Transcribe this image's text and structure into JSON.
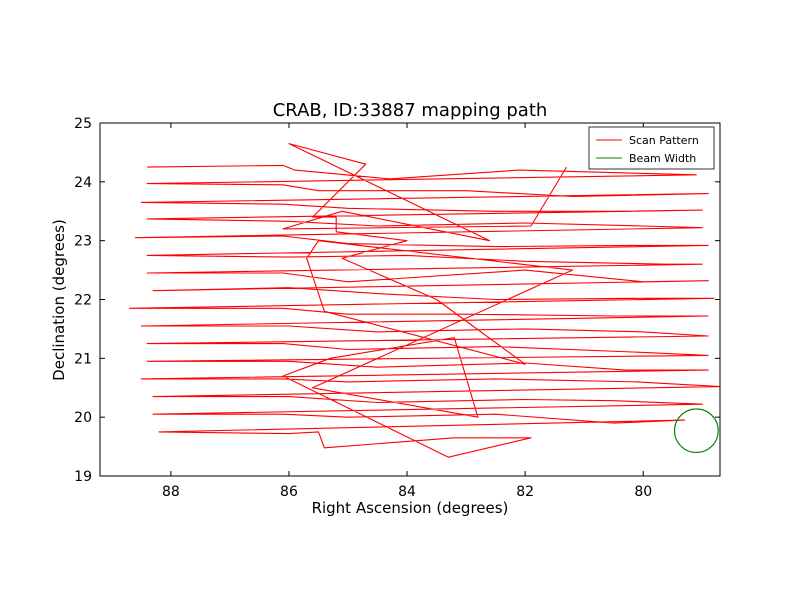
{
  "chart_data": {
    "type": "line",
    "title": "CRAB, ID:33887 mapping path",
    "xlabel": "Right Ascension (degrees)",
    "ylabel": "Declination (degrees)",
    "xlim": [
      89.2,
      78.7
    ],
    "ylim": [
      19,
      25
    ],
    "x_ticks": [
      88,
      86,
      84,
      82,
      80
    ],
    "y_ticks": [
      19,
      20,
      21,
      22,
      23,
      24,
      25
    ],
    "x_tick_labels": [
      "88",
      "86",
      "84",
      "82",
      "80"
    ],
    "y_tick_labels": [
      "19",
      "20",
      "21",
      "22",
      "23",
      "24",
      "25"
    ],
    "grid": false,
    "legend": {
      "location": "top-right",
      "entries": [
        {
          "label": "Scan Pattern",
          "color": "#ff0000"
        },
        {
          "label": "Beam Width",
          "color": "#008000"
        }
      ]
    },
    "series": [
      {
        "name": "Scan Pattern",
        "color": "#ff0000",
        "points": [
          [
            88.4,
            24.25
          ],
          [
            86.1,
            24.28
          ],
          [
            85.9,
            24.2
          ],
          [
            84.3,
            24.05
          ],
          [
            82.1,
            24.2
          ],
          [
            79.1,
            24.12
          ],
          [
            88.4,
            23.97
          ],
          [
            86.1,
            23.95
          ],
          [
            85.5,
            23.85
          ],
          [
            83.0,
            23.85
          ],
          [
            81.2,
            23.75
          ],
          [
            78.9,
            23.8
          ],
          [
            88.5,
            23.65
          ],
          [
            86.1,
            23.62
          ],
          [
            85.0,
            23.55
          ],
          [
            82.5,
            23.5
          ],
          [
            80.5,
            23.5
          ],
          [
            79.0,
            23.52
          ],
          [
            88.4,
            23.37
          ],
          [
            86.0,
            23.33
          ],
          [
            84.5,
            23.25
          ],
          [
            82.0,
            23.3
          ],
          [
            80.0,
            23.25
          ],
          [
            79.0,
            23.22
          ],
          [
            88.6,
            23.05
          ],
          [
            86.1,
            23.08
          ],
          [
            85.0,
            22.95
          ],
          [
            82.5,
            22.9
          ],
          [
            80.2,
            22.92
          ],
          [
            78.9,
            22.92
          ],
          [
            88.4,
            22.75
          ],
          [
            86.0,
            22.72
          ],
          [
            84.0,
            22.75
          ],
          [
            82.0,
            22.65
          ],
          [
            79.6,
            22.6
          ],
          [
            79.0,
            22.6
          ],
          [
            88.4,
            22.45
          ],
          [
            86.1,
            22.45
          ],
          [
            85.0,
            22.3
          ],
          [
            82.0,
            22.5
          ],
          [
            80.0,
            22.3
          ],
          [
            78.9,
            22.32
          ],
          [
            88.3,
            22.15
          ],
          [
            86.0,
            22.2
          ],
          [
            84.5,
            22.1
          ],
          [
            82.5,
            22.0
          ],
          [
            80.0,
            22.02
          ],
          [
            78.8,
            22.02
          ],
          [
            88.7,
            21.85
          ],
          [
            86.1,
            21.85
          ],
          [
            85.0,
            21.75
          ],
          [
            83.0,
            21.75
          ],
          [
            80.5,
            21.72
          ],
          [
            78.9,
            21.72
          ],
          [
            88.5,
            21.55
          ],
          [
            86.0,
            21.55
          ],
          [
            84.5,
            21.45
          ],
          [
            82.0,
            21.5
          ],
          [
            80.0,
            21.45
          ],
          [
            78.9,
            21.38
          ],
          [
            88.4,
            21.25
          ],
          [
            86.1,
            21.25
          ],
          [
            85.0,
            21.15
          ],
          [
            82.5,
            21.2
          ],
          [
            80.0,
            21.1
          ],
          [
            78.9,
            21.05
          ],
          [
            88.4,
            20.95
          ],
          [
            86.0,
            20.95
          ],
          [
            84.5,
            20.85
          ],
          [
            82.0,
            20.92
          ],
          [
            80.3,
            20.8
          ],
          [
            78.9,
            20.8
          ],
          [
            88.5,
            20.65
          ],
          [
            86.1,
            20.65
          ],
          [
            85.0,
            20.6
          ],
          [
            82.5,
            20.65
          ],
          [
            80.1,
            20.6
          ],
          [
            78.7,
            20.52
          ],
          [
            88.3,
            20.35
          ],
          [
            86.0,
            20.35
          ],
          [
            84.5,
            20.25
          ],
          [
            82.0,
            20.3
          ],
          [
            80.5,
            20.28
          ],
          [
            79.0,
            20.22
          ],
          [
            88.3,
            20.05
          ],
          [
            86.1,
            20.05
          ],
          [
            85.0,
            20.0
          ],
          [
            82.5,
            20.05
          ],
          [
            80.5,
            19.9
          ],
          [
            79.3,
            19.95
          ],
          [
            88.2,
            19.75
          ],
          [
            86.0,
            19.72
          ],
          [
            85.5,
            19.75
          ],
          [
            85.4,
            19.48
          ],
          [
            83.2,
            19.65
          ],
          [
            81.9,
            19.65
          ],
          [
            83.3,
            19.32
          ],
          [
            86.1,
            20.7
          ],
          [
            85.3,
            21.0
          ],
          [
            83.2,
            21.35
          ],
          [
            82.8,
            20.0
          ],
          [
            85.6,
            20.5
          ],
          [
            81.2,
            22.5
          ],
          [
            85.5,
            23.0
          ],
          [
            85.7,
            22.7
          ],
          [
            85.4,
            21.8
          ],
          [
            82.0,
            20.9
          ],
          [
            83.5,
            22.0
          ],
          [
            85.1,
            22.7
          ],
          [
            84.0,
            23.0
          ],
          [
            85.2,
            23.15
          ],
          [
            85.2,
            23.4
          ],
          [
            85.6,
            23.4
          ],
          [
            84.7,
            24.3
          ],
          [
            86.0,
            24.65
          ],
          [
            82.6,
            23.0
          ],
          [
            85.1,
            23.5
          ],
          [
            86.1,
            23.2
          ],
          [
            81.9,
            23.25
          ],
          [
            81.3,
            24.25
          ]
        ]
      }
    ],
    "beam": {
      "name": "Beam Width",
      "color": "#008000",
      "center": [
        79.1,
        19.77
      ],
      "radius_deg": 0.37
    }
  }
}
